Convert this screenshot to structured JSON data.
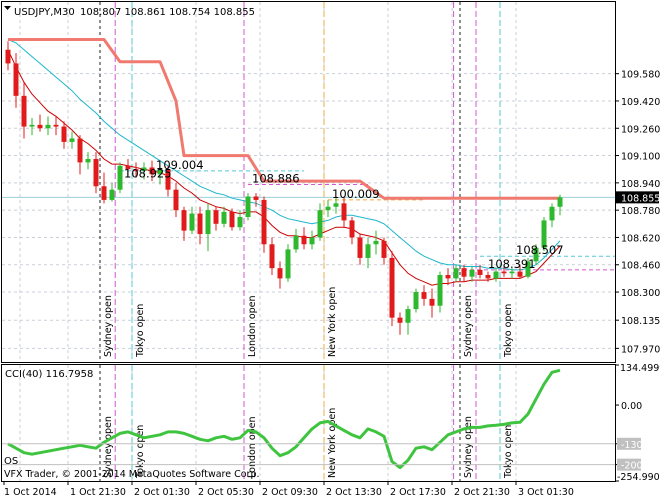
{
  "header": {
    "symbol_tf": "USDJPY,M30",
    "ohlc": "108.807 108.861 108.754 108.855"
  },
  "footer": {
    "os_label": "OS",
    "copyright": "VFX Trader, © 2001-2014 MetaQuotes Software Corp."
  },
  "colors": {
    "bull": "#2db82d",
    "bear": "#e11b1b",
    "ema_fast": "#cc0000",
    "ema_slow": "#1cb6cc",
    "stop_line": "#f07a70",
    "cci": "#3ec43e",
    "grid": "#c8cfd8",
    "price_line": "#9ad0d8",
    "session_cyan": "#56c7d6",
    "session_magenta": "#d058d0",
    "session_orange": "#f2a93c"
  },
  "chart_data": [
    {
      "type": "candlestick",
      "title": "USDJPY,M30",
      "ylim": [
        107.89,
        110.0
      ],
      "y_ticks": [
        "109.580",
        "109.420",
        "109.260",
        "109.100",
        "108.940",
        "108.780",
        "108.620",
        "108.460",
        "108.300",
        "108.135",
        "107.970"
      ],
      "x_labels": [
        "1 Oct 2014",
        "1 Oct 21:30",
        "2 Oct 01:30",
        "2 Oct 05:30",
        "2 Oct 09:30",
        "2 Oct 13:30",
        "2 Oct 17:30",
        "2 Oct 21:30",
        "3 Oct 01:30"
      ],
      "current_price": "108.855",
      "candles": [
        {
          "o": 109.72,
          "h": 109.77,
          "l": 109.6,
          "c": 109.64
        },
        {
          "o": 109.64,
          "h": 109.7,
          "l": 109.38,
          "c": 109.45
        },
        {
          "o": 109.45,
          "h": 109.53,
          "l": 109.2,
          "c": 109.27
        },
        {
          "o": 109.27,
          "h": 109.32,
          "l": 109.22,
          "c": 109.28
        },
        {
          "o": 109.28,
          "h": 109.34,
          "l": 109.24,
          "c": 109.26
        },
        {
          "o": 109.26,
          "h": 109.33,
          "l": 109.22,
          "c": 109.28
        },
        {
          "o": 109.28,
          "h": 109.33,
          "l": 109.22,
          "c": 109.27
        },
        {
          "o": 109.27,
          "h": 109.3,
          "l": 109.14,
          "c": 109.18
        },
        {
          "o": 109.18,
          "h": 109.24,
          "l": 109.14,
          "c": 109.2
        },
        {
          "o": 109.2,
          "h": 109.22,
          "l": 108.99,
          "c": 109.06
        },
        {
          "o": 109.06,
          "h": 109.12,
          "l": 109.02,
          "c": 109.08
        },
        {
          "o": 109.08,
          "h": 109.12,
          "l": 108.88,
          "c": 108.92
        },
        {
          "o": 108.92,
          "h": 109.0,
          "l": 108.82,
          "c": 108.84
        },
        {
          "o": 108.84,
          "h": 108.94,
          "l": 108.83,
          "c": 108.9
        },
        {
          "o": 108.9,
          "h": 109.06,
          "l": 108.88,
          "c": 109.04
        },
        {
          "o": 109.04,
          "h": 109.08,
          "l": 108.98,
          "c": 109.02
        },
        {
          "o": 109.02,
          "h": 109.06,
          "l": 108.97,
          "c": 109.01
        },
        {
          "o": 109.01,
          "h": 109.06,
          "l": 108.96,
          "c": 109.03
        },
        {
          "o": 109.03,
          "h": 109.07,
          "l": 108.95,
          "c": 108.99
        },
        {
          "o": 108.99,
          "h": 109.04,
          "l": 108.93,
          "c": 109.02
        },
        {
          "o": 109.02,
          "h": 109.04,
          "l": 108.86,
          "c": 108.9
        },
        {
          "o": 108.9,
          "h": 108.94,
          "l": 108.74,
          "c": 108.78
        },
        {
          "o": 108.78,
          "h": 108.8,
          "l": 108.6,
          "c": 108.66
        },
        {
          "o": 108.66,
          "h": 108.8,
          "l": 108.64,
          "c": 108.76
        },
        {
          "o": 108.76,
          "h": 108.8,
          "l": 108.58,
          "c": 108.64
        },
        {
          "o": 108.64,
          "h": 108.82,
          "l": 108.54,
          "c": 108.78
        },
        {
          "o": 108.78,
          "h": 108.8,
          "l": 108.66,
          "c": 108.7
        },
        {
          "o": 108.7,
          "h": 108.8,
          "l": 108.68,
          "c": 108.77
        },
        {
          "o": 108.77,
          "h": 108.79,
          "l": 108.66,
          "c": 108.68
        },
        {
          "o": 108.68,
          "h": 108.78,
          "l": 108.66,
          "c": 108.74
        },
        {
          "o": 108.74,
          "h": 108.88,
          "l": 108.72,
          "c": 108.86
        },
        {
          "o": 108.86,
          "h": 108.88,
          "l": 108.8,
          "c": 108.84
        },
        {
          "o": 108.84,
          "h": 108.86,
          "l": 108.53,
          "c": 108.58
        },
        {
          "o": 108.58,
          "h": 108.62,
          "l": 108.4,
          "c": 108.44
        },
        {
          "o": 108.44,
          "h": 108.48,
          "l": 108.32,
          "c": 108.38
        },
        {
          "o": 108.38,
          "h": 108.58,
          "l": 108.36,
          "c": 108.55
        },
        {
          "o": 108.55,
          "h": 108.67,
          "l": 108.53,
          "c": 108.63
        },
        {
          "o": 108.63,
          "h": 108.68,
          "l": 108.55,
          "c": 108.58
        },
        {
          "o": 108.58,
          "h": 108.66,
          "l": 108.55,
          "c": 108.62
        },
        {
          "o": 108.62,
          "h": 108.82,
          "l": 108.6,
          "c": 108.78
        },
        {
          "o": 108.78,
          "h": 108.84,
          "l": 108.74,
          "c": 108.8
        },
        {
          "o": 108.8,
          "h": 108.86,
          "l": 108.76,
          "c": 108.82
        },
        {
          "o": 108.82,
          "h": 108.86,
          "l": 108.68,
          "c": 108.72
        },
        {
          "o": 108.72,
          "h": 108.74,
          "l": 108.58,
          "c": 108.62
        },
        {
          "o": 108.62,
          "h": 108.64,
          "l": 108.46,
          "c": 108.5
        },
        {
          "o": 108.5,
          "h": 108.62,
          "l": 108.44,
          "c": 108.58
        },
        {
          "o": 108.58,
          "h": 108.66,
          "l": 108.52,
          "c": 108.6
        },
        {
          "o": 108.6,
          "h": 108.62,
          "l": 108.46,
          "c": 108.5
        },
        {
          "o": 108.5,
          "h": 108.54,
          "l": 108.1,
          "c": 108.15
        },
        {
          "o": 108.15,
          "h": 108.18,
          "l": 108.05,
          "c": 108.12
        },
        {
          "o": 108.12,
          "h": 108.22,
          "l": 108.05,
          "c": 108.2
        },
        {
          "o": 108.2,
          "h": 108.32,
          "l": 108.18,
          "c": 108.3
        },
        {
          "o": 108.3,
          "h": 108.34,
          "l": 108.22,
          "c": 108.26
        },
        {
          "o": 108.26,
          "h": 108.32,
          "l": 108.15,
          "c": 108.22
        },
        {
          "o": 108.22,
          "h": 108.42,
          "l": 108.18,
          "c": 108.4
        },
        {
          "o": 108.4,
          "h": 108.44,
          "l": 108.34,
          "c": 108.38
        },
        {
          "o": 108.38,
          "h": 108.46,
          "l": 108.36,
          "c": 108.44
        },
        {
          "o": 108.44,
          "h": 108.46,
          "l": 108.36,
          "c": 108.39
        },
        {
          "o": 108.39,
          "h": 108.45,
          "l": 108.36,
          "c": 108.43
        },
        {
          "o": 108.43,
          "h": 108.46,
          "l": 108.38,
          "c": 108.4
        },
        {
          "o": 108.4,
          "h": 108.42,
          "l": 108.36,
          "c": 108.38
        },
        {
          "o": 108.38,
          "h": 108.44,
          "l": 108.36,
          "c": 108.42
        },
        {
          "o": 108.42,
          "h": 108.45,
          "l": 108.39,
          "c": 108.41
        },
        {
          "o": 108.41,
          "h": 108.44,
          "l": 108.38,
          "c": 108.42
        },
        {
          "o": 108.42,
          "h": 108.46,
          "l": 108.38,
          "c": 108.39
        },
        {
          "o": 108.39,
          "h": 108.5,
          "l": 108.38,
          "c": 108.48
        },
        {
          "o": 108.48,
          "h": 108.58,
          "l": 108.46,
          "c": 108.56
        },
        {
          "o": 108.56,
          "h": 108.74,
          "l": 108.54,
          "c": 108.72
        },
        {
          "o": 108.72,
          "h": 108.82,
          "l": 108.68,
          "c": 108.8
        },
        {
          "o": 108.8,
          "h": 108.87,
          "l": 108.75,
          "c": 108.855
        }
      ],
      "ema_fast": [
        109.72,
        109.62,
        109.53,
        109.46,
        109.41,
        109.36,
        109.33,
        109.29,
        109.25,
        109.2,
        109.17,
        109.13,
        109.08,
        109.05,
        109.05,
        109.04,
        109.03,
        109.02,
        109.01,
        109.0,
        108.98,
        108.95,
        108.91,
        108.88,
        108.84,
        108.82,
        108.8,
        108.79,
        108.77,
        108.76,
        108.77,
        108.77,
        108.74,
        108.69,
        108.65,
        108.63,
        108.63,
        108.62,
        108.62,
        108.64,
        108.66,
        108.68,
        108.68,
        108.67,
        108.64,
        108.63,
        108.62,
        108.6,
        108.53,
        108.46,
        108.41,
        108.38,
        108.36,
        108.34,
        108.35,
        108.35,
        108.36,
        108.36,
        108.37,
        108.37,
        108.37,
        108.38,
        108.38,
        108.38,
        108.38,
        108.4,
        108.42,
        108.47,
        108.52,
        108.57
      ],
      "ema_slow": [
        109.78,
        109.76,
        109.72,
        109.68,
        109.64,
        109.6,
        109.56,
        109.52,
        109.48,
        109.43,
        109.39,
        109.35,
        109.3,
        109.26,
        109.22,
        109.19,
        109.16,
        109.13,
        109.1,
        109.07,
        109.04,
        109.01,
        108.98,
        108.95,
        108.92,
        108.9,
        108.88,
        108.87,
        108.85,
        108.84,
        108.83,
        108.82,
        108.8,
        108.78,
        108.75,
        108.73,
        108.72,
        108.71,
        108.7,
        108.71,
        108.72,
        108.74,
        108.75,
        108.75,
        108.74,
        108.73,
        108.72,
        108.7,
        108.66,
        108.62,
        108.58,
        108.54,
        108.51,
        108.49,
        108.47,
        108.46,
        108.46,
        108.45,
        108.45,
        108.45,
        108.44,
        108.44,
        108.44,
        108.43,
        108.43,
        108.44,
        108.46,
        108.5,
        108.55,
        108.6
      ],
      "stop_line": [
        {
          "x": 0,
          "y": 109.78
        },
        {
          "x": 12,
          "y": 109.78
        },
        {
          "x": 14,
          "y": 109.65
        },
        {
          "x": 19,
          "y": 109.65
        },
        {
          "x": 21,
          "y": 109.42
        },
        {
          "x": 22,
          "y": 109.1
        },
        {
          "x": 30,
          "y": 109.1
        },
        {
          "x": 32,
          "y": 108.95
        },
        {
          "x": 44,
          "y": 108.95
        },
        {
          "x": 47,
          "y": 108.85
        },
        {
          "x": 69,
          "y": 108.85
        }
      ],
      "annotations": [
        {
          "text": "109.004",
          "x": 18.5,
          "y": 109.01
        },
        {
          "text": "108.925",
          "x": 14.5,
          "y": 108.96
        },
        {
          "text": "108.886",
          "x": 30.5,
          "y": 108.93
        },
        {
          "text": "100.009",
          "x": 40.5,
          "y": 108.84
        },
        {
          "text": "108.507",
          "x": 63.5,
          "y": 108.51
        },
        {
          "text": "108.391",
          "x": 60.0,
          "y": 108.43
        }
      ],
      "sessions": [
        {
          "label": "Sydney open",
          "x": 12,
          "color": "#222222",
          "style": "dash"
        },
        {
          "label": "Tokyo open",
          "x": 16,
          "color": "#56c7d6",
          "style": "dash"
        },
        {
          "label": "London open",
          "x": 30,
          "color": "#d058d0",
          "style": "dash"
        },
        {
          "label": "New York open",
          "x": 40,
          "color": "#f2a93c",
          "style": "dash"
        },
        {
          "label": "Sydney open",
          "x": 57,
          "color": "#222222",
          "style": "dash"
        },
        {
          "label": "Tokyo open",
          "x": 62,
          "color": "#56c7d6",
          "style": "dash"
        }
      ],
      "extra_vlines": [
        {
          "x": 13.9,
          "color": "#d058d0",
          "style": "dash"
        },
        {
          "x": 56.2,
          "color": "#d058d0",
          "style": "dash"
        },
        {
          "x": 59.0,
          "color": "#d058d0",
          "style": "dash"
        }
      ]
    },
    {
      "type": "line",
      "title": "CCI(40) 116.7958",
      "ylim": [
        -254.9903,
        134.4999
      ],
      "y_ticks": [
        "134.4999",
        "0.00",
        "-130",
        "-200",
        "-254.9903"
      ],
      "series": [
        {
          "name": "CCI(40)",
          "values": [
            -130,
            -145,
            -160,
            -165,
            -160,
            -155,
            -150,
            -145,
            -140,
            -135,
            -140,
            -145,
            -125,
            -110,
            -95,
            -90,
            -100,
            -110,
            -105,
            -100,
            -90,
            -90,
            -95,
            -105,
            -115,
            -120,
            -110,
            -105,
            -115,
            -110,
            -85,
            -90,
            -110,
            -145,
            -170,
            -160,
            -140,
            -110,
            -80,
            -60,
            -55,
            -70,
            -85,
            -100,
            -110,
            -80,
            -90,
            -105,
            -190,
            -210,
            -185,
            -145,
            -140,
            -150,
            -125,
            -100,
            -90,
            -80,
            -75,
            -75,
            -70,
            -68,
            -65,
            -60,
            -58,
            -30,
            20,
            70,
            110,
            116.7958
          ]
        }
      ]
    }
  ]
}
